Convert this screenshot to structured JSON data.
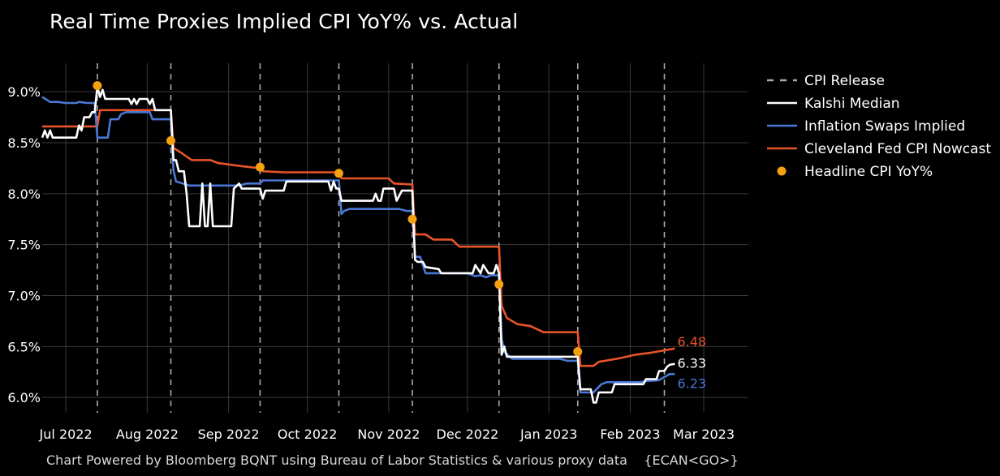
{
  "chart_data": {
    "type": "line",
    "title": "Real Time Proxies Implied CPI YoY% vs. Actual",
    "footnote": "Chart Powered by Bloomberg BQNT using Bureau of Labor Statistics & various proxy data    {ECAN<GO>}",
    "xlim": [
      "2022-06-22",
      "2023-03-18"
    ],
    "ylim": [
      5.85,
      9.28
    ],
    "y_ticks": [
      6.0,
      6.5,
      7.0,
      7.5,
      8.0,
      8.5,
      9.0
    ],
    "y_tick_labels": [
      "6.0%",
      "6.5%",
      "7.0%",
      "7.5%",
      "8.0%",
      "8.5%",
      "9.0%"
    ],
    "x_ticks": [
      "2022-07-01",
      "2022-08-01",
      "2022-09-01",
      "2022-10-01",
      "2022-11-01",
      "2022-12-01",
      "2023-01-01",
      "2023-02-01",
      "2023-03-01"
    ],
    "x_tick_labels": [
      "Jul 2022",
      "Aug 2022",
      "Sep 2022",
      "Oct 2022",
      "Nov 2022",
      "Dec 2022",
      "Jan 2023",
      "Feb 2023",
      "Mar 2023"
    ],
    "grid": true,
    "legend_position": "right",
    "cpi_release_dates": [
      "2022-07-13",
      "2022-08-10",
      "2022-09-13",
      "2022-10-13",
      "2022-11-10",
      "2022-12-13",
      "2023-01-12",
      "2023-02-14"
    ],
    "series": [
      {
        "name": "CPI Release",
        "style": "dashed",
        "color": "#aaaaaa"
      },
      {
        "name": "Kalshi Median",
        "color": "#ffffff",
        "end_label": "6.33",
        "points": [
          [
            "2022-06-22",
            8.55
          ],
          [
            "2022-06-23",
            8.62
          ],
          [
            "2022-06-24",
            8.55
          ],
          [
            "2022-06-25",
            8.62
          ],
          [
            "2022-06-26",
            8.55
          ],
          [
            "2022-07-03",
            8.55
          ],
          [
            "2022-07-05",
            8.55
          ],
          [
            "2022-07-06",
            8.67
          ],
          [
            "2022-07-07",
            8.62
          ],
          [
            "2022-07-08",
            8.75
          ],
          [
            "2022-07-10",
            8.75
          ],
          [
            "2022-07-11",
            8.8
          ],
          [
            "2022-07-12",
            8.8
          ],
          [
            "2022-07-13",
            9.05
          ],
          [
            "2022-07-14",
            8.95
          ],
          [
            "2022-07-15",
            9.02
          ],
          [
            "2022-07-16",
            8.93
          ],
          [
            "2022-07-25",
            8.93
          ],
          [
            "2022-07-26",
            8.88
          ],
          [
            "2022-07-27",
            8.93
          ],
          [
            "2022-07-28",
            8.88
          ],
          [
            "2022-07-29",
            8.93
          ],
          [
            "2022-08-01",
            8.93
          ],
          [
            "2022-08-02",
            8.88
          ],
          [
            "2022-08-03",
            8.93
          ],
          [
            "2022-08-04",
            8.82
          ],
          [
            "2022-08-09",
            8.82
          ],
          [
            "2022-08-10",
            8.82
          ],
          [
            "2022-08-11",
            8.33
          ],
          [
            "2022-08-12",
            8.33
          ],
          [
            "2022-08-13",
            8.22
          ],
          [
            "2022-08-15",
            8.22
          ],
          [
            "2022-08-16",
            8.0
          ],
          [
            "2022-08-17",
            7.68
          ],
          [
            "2022-08-21",
            7.68
          ],
          [
            "2022-08-22",
            8.1
          ],
          [
            "2022-08-23",
            7.68
          ],
          [
            "2022-08-24",
            7.68
          ],
          [
            "2022-08-25",
            8.1
          ],
          [
            "2022-08-26",
            7.68
          ],
          [
            "2022-09-02",
            7.68
          ],
          [
            "2022-09-03",
            8.05
          ],
          [
            "2022-09-05",
            8.1
          ],
          [
            "2022-09-06",
            8.05
          ],
          [
            "2022-09-08",
            8.05
          ],
          [
            "2022-09-13",
            8.05
          ],
          [
            "2022-09-14",
            7.95
          ],
          [
            "2022-09-15",
            8.03
          ],
          [
            "2022-09-22",
            8.03
          ],
          [
            "2022-09-23",
            8.12
          ],
          [
            "2022-10-09",
            8.12
          ],
          [
            "2022-10-10",
            8.03
          ],
          [
            "2022-10-11",
            8.12
          ],
          [
            "2022-10-12",
            8.05
          ],
          [
            "2022-10-13",
            8.05
          ],
          [
            "2022-10-14",
            7.93
          ],
          [
            "2022-10-26",
            7.93
          ],
          [
            "2022-10-27",
            8.0
          ],
          [
            "2022-10-28",
            7.93
          ],
          [
            "2022-10-29",
            7.93
          ],
          [
            "2022-10-30",
            8.05
          ],
          [
            "2022-11-03",
            8.05
          ],
          [
            "2022-11-04",
            7.93
          ],
          [
            "2022-11-06",
            8.03
          ],
          [
            "2022-11-08",
            8.03
          ],
          [
            "2022-11-10",
            8.03
          ],
          [
            "2022-11-11",
            7.35
          ],
          [
            "2022-11-12",
            7.33
          ],
          [
            "2022-11-14",
            7.33
          ],
          [
            "2022-11-15",
            7.28
          ],
          [
            "2022-11-20",
            7.26
          ],
          [
            "2022-11-21",
            7.22
          ],
          [
            "2022-12-03",
            7.22
          ],
          [
            "2022-12-04",
            7.3
          ],
          [
            "2022-12-06",
            7.22
          ],
          [
            "2022-12-07",
            7.3
          ],
          [
            "2022-12-09",
            7.22
          ],
          [
            "2022-12-11",
            7.22
          ],
          [
            "2022-12-12",
            7.3
          ],
          [
            "2022-12-13",
            7.22
          ],
          [
            "2022-12-14",
            6.42
          ],
          [
            "2022-12-15",
            6.5
          ],
          [
            "2022-12-16",
            6.4
          ],
          [
            "2023-01-11",
            6.4
          ],
          [
            "2023-01-12",
            6.4
          ],
          [
            "2023-01-13",
            6.08
          ],
          [
            "2023-01-17",
            6.08
          ],
          [
            "2023-01-18",
            5.95
          ],
          [
            "2023-01-19",
            5.95
          ],
          [
            "2023-01-20",
            6.05
          ],
          [
            "2023-01-25",
            6.05
          ],
          [
            "2023-01-26",
            6.13
          ],
          [
            "2023-02-06",
            6.13
          ],
          [
            "2023-02-07",
            6.18
          ],
          [
            "2023-02-11",
            6.18
          ],
          [
            "2023-02-12",
            6.26
          ],
          [
            "2023-02-14",
            6.26
          ],
          [
            "2023-02-15",
            6.3
          ],
          [
            "2023-02-16",
            6.32
          ],
          [
            "2023-02-18",
            6.33
          ]
        ]
      },
      {
        "name": "Inflation Swaps Implied",
        "color": "#4a78d4",
        "end_label": "6.23",
        "points": [
          [
            "2022-06-22",
            8.95
          ],
          [
            "2022-06-25",
            8.9
          ],
          [
            "2022-06-28",
            8.9
          ],
          [
            "2022-07-01",
            8.89
          ],
          [
            "2022-07-05",
            8.89
          ],
          [
            "2022-07-06",
            8.9
          ],
          [
            "2022-07-09",
            8.89
          ],
          [
            "2022-07-12",
            8.89
          ],
          [
            "2022-07-13",
            8.55
          ],
          [
            "2022-07-17",
            8.55
          ],
          [
            "2022-07-18",
            8.73
          ],
          [
            "2022-07-21",
            8.73
          ],
          [
            "2022-07-22",
            8.78
          ],
          [
            "2022-07-24",
            8.8
          ],
          [
            "2022-08-02",
            8.8
          ],
          [
            "2022-08-03",
            8.73
          ],
          [
            "2022-08-08",
            8.73
          ],
          [
            "2022-08-10",
            8.73
          ],
          [
            "2022-08-11",
            8.23
          ],
          [
            "2022-08-12",
            8.12
          ],
          [
            "2022-08-17",
            8.08
          ],
          [
            "2022-08-25",
            8.08
          ],
          [
            "2022-09-05",
            8.08
          ],
          [
            "2022-09-08",
            8.1
          ],
          [
            "2022-09-13",
            8.1
          ],
          [
            "2022-09-14",
            8.13
          ],
          [
            "2022-10-13",
            8.13
          ],
          [
            "2022-10-14",
            7.8
          ],
          [
            "2022-10-15",
            7.83
          ],
          [
            "2022-10-17",
            7.85
          ],
          [
            "2022-11-05",
            7.85
          ],
          [
            "2022-11-08",
            7.83
          ],
          [
            "2022-11-10",
            7.83
          ],
          [
            "2022-11-11",
            7.38
          ],
          [
            "2022-11-13",
            7.38
          ],
          [
            "2022-11-15",
            7.22
          ],
          [
            "2022-12-01",
            7.22
          ],
          [
            "2022-12-04",
            7.19
          ],
          [
            "2022-12-06",
            7.2
          ],
          [
            "2022-12-08",
            7.18
          ],
          [
            "2022-12-10",
            7.2
          ],
          [
            "2022-12-13",
            7.2
          ],
          [
            "2022-12-14",
            6.58
          ],
          [
            "2022-12-15",
            6.45
          ],
          [
            "2022-12-18",
            6.38
          ],
          [
            "2023-01-05",
            6.38
          ],
          [
            "2023-01-08",
            6.36
          ],
          [
            "2023-01-12",
            6.36
          ],
          [
            "2023-01-13",
            6.05
          ],
          [
            "2023-01-18",
            6.05
          ],
          [
            "2023-01-21",
            6.13
          ],
          [
            "2023-01-23",
            6.15
          ],
          [
            "2023-02-05",
            6.15
          ],
          [
            "2023-02-07",
            6.16
          ],
          [
            "2023-02-12",
            6.17
          ],
          [
            "2023-02-14",
            6.2
          ],
          [
            "2023-02-16",
            6.23
          ],
          [
            "2023-02-18",
            6.23
          ]
        ]
      },
      {
        "name": "Cleveland Fed CPI Nowcast",
        "color": "#e8542a",
        "end_label": "6.48",
        "points": [
          [
            "2022-06-22",
            8.66
          ],
          [
            "2022-07-13",
            8.66
          ],
          [
            "2022-07-14",
            8.82
          ],
          [
            "2022-08-10",
            8.82
          ],
          [
            "2022-08-11",
            8.45
          ],
          [
            "2022-08-14",
            8.4
          ],
          [
            "2022-08-18",
            8.33
          ],
          [
            "2022-08-25",
            8.33
          ],
          [
            "2022-08-28",
            8.3
          ],
          [
            "2022-09-06",
            8.27
          ],
          [
            "2022-09-13",
            8.25
          ],
          [
            "2022-09-14",
            8.22
          ],
          [
            "2022-09-22",
            8.21
          ],
          [
            "2022-10-13",
            8.21
          ],
          [
            "2022-10-14",
            8.15
          ],
          [
            "2022-11-01",
            8.15
          ],
          [
            "2022-11-03",
            8.1
          ],
          [
            "2022-11-10",
            8.09
          ],
          [
            "2022-11-11",
            7.6
          ],
          [
            "2022-11-15",
            7.6
          ],
          [
            "2022-11-18",
            7.55
          ],
          [
            "2022-11-25",
            7.55
          ],
          [
            "2022-11-28",
            7.48
          ],
          [
            "2022-12-13",
            7.48
          ],
          [
            "2022-12-14",
            6.9
          ],
          [
            "2022-12-16",
            6.78
          ],
          [
            "2022-12-20",
            6.72
          ],
          [
            "2022-12-25",
            6.7
          ],
          [
            "2022-12-30",
            6.64
          ],
          [
            "2023-01-12",
            6.64
          ],
          [
            "2023-01-13",
            6.31
          ],
          [
            "2023-01-18",
            6.31
          ],
          [
            "2023-01-20",
            6.35
          ],
          [
            "2023-01-27",
            6.38
          ],
          [
            "2023-02-03",
            6.42
          ],
          [
            "2023-02-09",
            6.44
          ],
          [
            "2023-02-18",
            6.48
          ]
        ]
      },
      {
        "name": "Headline CPI YoY%",
        "color": "#f5a00f",
        "marker": "circle",
        "points": [
          [
            "2022-07-13",
            9.06
          ],
          [
            "2022-08-10",
            8.52
          ],
          [
            "2022-09-13",
            8.26
          ],
          [
            "2022-10-13",
            8.2
          ],
          [
            "2022-11-10",
            7.75
          ],
          [
            "2022-12-13",
            7.11
          ],
          [
            "2023-01-12",
            6.45
          ]
        ]
      }
    ]
  }
}
